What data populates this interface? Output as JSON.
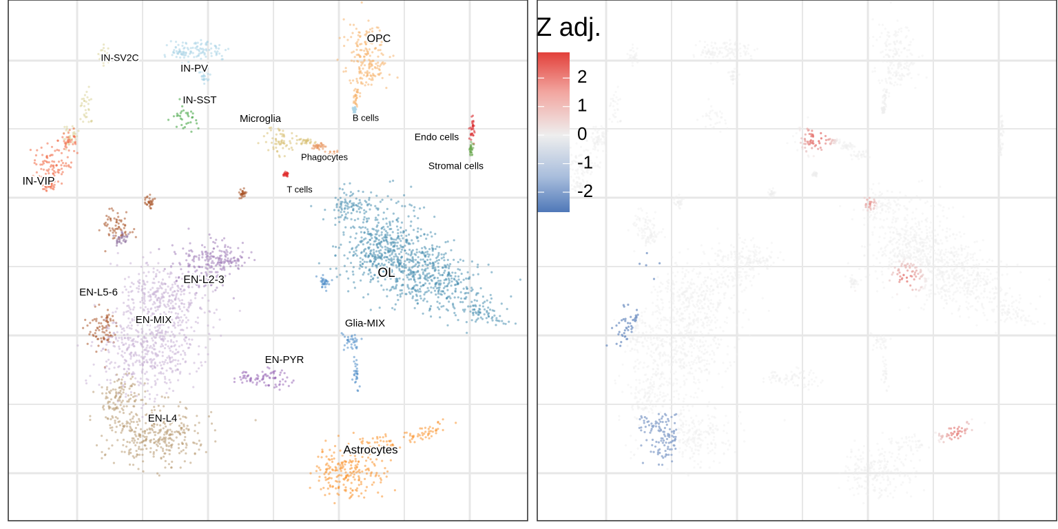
{
  "chart_data": [
    {
      "type": "scatter",
      "panel": "cluster-umap",
      "clusters": [
        {
          "label": "IN-SV2C",
          "color": "#dbd39a",
          "label_size": 14
        },
        {
          "label": "IN-PV",
          "color": "#a9d3e6",
          "label_size": 15
        },
        {
          "label": "IN-SST",
          "color": "#3aa13a",
          "label_size": 15
        },
        {
          "label": "IN-VIP",
          "color": "#f06a46",
          "label_size": 16
        },
        {
          "label": "OPC",
          "color": "#f6b26b",
          "label_size": 16
        },
        {
          "label": "Microglia",
          "color": "#d9c177",
          "label_size": 15
        },
        {
          "label": "B cells",
          "color": "#a9d3e6",
          "label_size": 13
        },
        {
          "label": "Phagocytes",
          "color": "#e8925a",
          "label_size": 13
        },
        {
          "label": "T cells",
          "color": "#e03030",
          "label_size": 13
        },
        {
          "label": "Endo cells",
          "color": "#d9282b",
          "label_size": 14
        },
        {
          "label": "Stromal cells",
          "color": "#6aa84f",
          "label_size": 14
        },
        {
          "label": "OL",
          "color": "#4a90b0",
          "label_size": 19
        },
        {
          "label": "EN-L2-3",
          "color": "#a27fba",
          "label_size": 16
        },
        {
          "label": "EN-L5-6",
          "color": "#a9562a",
          "label_size": 15
        },
        {
          "label": "EN-MIX",
          "color": "#c8b2d6",
          "label_size": 15
        },
        {
          "label": "Glia-MIX",
          "color": "#4a8ac6",
          "label_size": 15
        },
        {
          "label": "EN-PYR",
          "color": "#9b6bb8",
          "label_size": 15
        },
        {
          "label": "EN-L4",
          "color": "#b89a72",
          "label_size": 15
        },
        {
          "label": "Astrocytes",
          "color": "#f9932d",
          "label_size": 17
        },
        {
          "label": "",
          "color": "#a9562a",
          "label_size": 0
        },
        {
          "label": "",
          "color": "#8b6b9b",
          "label_size": 0
        }
      ],
      "grid": true
    },
    {
      "type": "scatter",
      "panel": "z-score-umap",
      "legend": {
        "title": "Z adj.",
        "ticks": [
          "2",
          "1",
          "0",
          "-1",
          "-2"
        ],
        "tick_values": [
          2,
          1,
          0,
          -1,
          -2
        ],
        "range": [
          -2.7,
          2.9
        ],
        "colors": {
          "high": "#e2403a",
          "mid": "#eeeeee",
          "low": "#4f78b8"
        }
      },
      "grid": true
    }
  ]
}
